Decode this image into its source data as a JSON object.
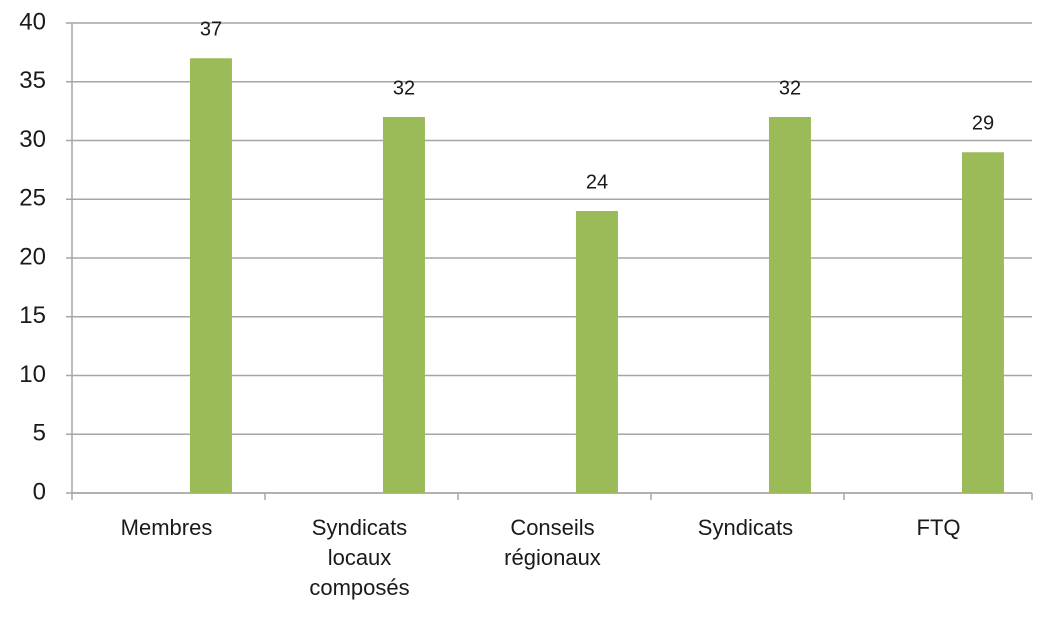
{
  "chart_data": {
    "type": "bar",
    "categories": [
      "Membres",
      "Syndicats locaux composés",
      "Conseils régionaux",
      "Syndicats",
      "FTQ"
    ],
    "values": [
      37,
      32,
      24,
      32,
      29
    ],
    "color": "#9bbb59",
    "ylim": [
      0,
      40
    ],
    "yticks": [
      0,
      5,
      10,
      15,
      20,
      25,
      30,
      35,
      40
    ],
    "grid": true
  }
}
